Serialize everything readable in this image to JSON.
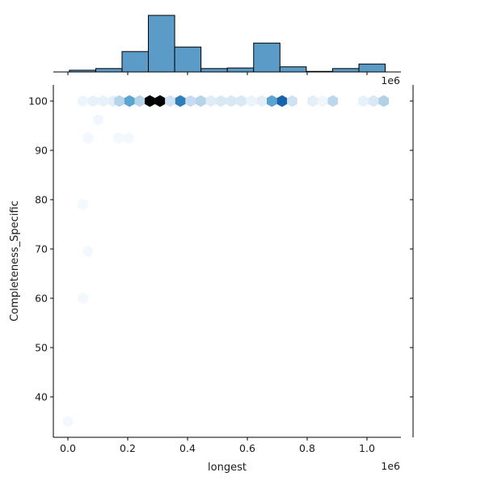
{
  "chart_data": {
    "type": "hexbin",
    "kind": "jointplot",
    "xlabel": "longest",
    "ylabel": "Completeness_Specific",
    "x_offset_text": "1e6",
    "xlim": [
      -50000,
      1120000
    ],
    "ylim": [
      32,
      103.5
    ],
    "x_ticks": [
      0.0,
      0.2,
      0.4,
      0.6,
      0.8,
      1.0
    ],
    "x_tick_labels": [
      "0.0",
      "0.2",
      "0.4",
      "0.6",
      "0.8",
      "1.0"
    ],
    "y_ticks": [
      40,
      50,
      60,
      70,
      80,
      90,
      100
    ],
    "y_tick_labels": [
      "40",
      "50",
      "60",
      "70",
      "80",
      "90",
      "100"
    ],
    "colormap": "Blues",
    "hexbins": [
      {
        "x": 50000,
        "y": 100,
        "level": 0.05
      },
      {
        "x": 84000,
        "y": 100,
        "level": 0.08
      },
      {
        "x": 118000,
        "y": 100,
        "level": 0.08
      },
      {
        "x": 152000,
        "y": 100,
        "level": 0.1
      },
      {
        "x": 172000,
        "y": 100,
        "level": 0.3
      },
      {
        "x": 206000,
        "y": 100,
        "level": 0.55
      },
      {
        "x": 240000,
        "y": 100,
        "level": 0.3
      },
      {
        "x": 274000,
        "y": 100,
        "level": 1.0
      },
      {
        "x": 308000,
        "y": 100,
        "level": 1.0
      },
      {
        "x": 342000,
        "y": 100,
        "level": 0.2
      },
      {
        "x": 376000,
        "y": 100,
        "level": 0.7
      },
      {
        "x": 410000,
        "y": 100,
        "level": 0.25
      },
      {
        "x": 444000,
        "y": 100,
        "level": 0.3
      },
      {
        "x": 478000,
        "y": 100,
        "level": 0.12
      },
      {
        "x": 512000,
        "y": 100,
        "level": 0.15
      },
      {
        "x": 546000,
        "y": 100,
        "level": 0.15
      },
      {
        "x": 580000,
        "y": 100,
        "level": 0.15
      },
      {
        "x": 614000,
        "y": 100,
        "level": 0.06
      },
      {
        "x": 648000,
        "y": 100,
        "level": 0.1
      },
      {
        "x": 682000,
        "y": 100,
        "level": 0.55
      },
      {
        "x": 716000,
        "y": 100,
        "level": 0.8
      },
      {
        "x": 750000,
        "y": 100,
        "level": 0.2
      },
      {
        "x": 818000,
        "y": 100,
        "level": 0.1
      },
      {
        "x": 852000,
        "y": 100,
        "level": 0.04
      },
      {
        "x": 886000,
        "y": 100,
        "level": 0.28
      },
      {
        "x": 988000,
        "y": 100,
        "level": 0.08
      },
      {
        "x": 1022000,
        "y": 100,
        "level": 0.15
      },
      {
        "x": 1056000,
        "y": 100,
        "level": 0.32
      },
      {
        "x": 101000,
        "y": 96.2,
        "level": 0.03
      },
      {
        "x": 67000,
        "y": 92.5,
        "level": 0.02
      },
      {
        "x": 169000,
        "y": 92.5,
        "level": 0.02
      },
      {
        "x": 203000,
        "y": 92.5,
        "level": 0.02
      },
      {
        "x": 50000,
        "y": 79,
        "level": 0.02
      },
      {
        "x": 67000,
        "y": 69.5,
        "level": 0.02
      },
      {
        "x": 50000,
        "y": 60,
        "level": 0.02
      },
      {
        "x": 0,
        "y": 35,
        "level": 0.02
      }
    ],
    "marginal_x_histogram": {
      "bin_edges": [
        5000,
        93000,
        181000,
        269000,
        357000,
        445000,
        533000,
        621000,
        709000,
        797000,
        885000,
        973000,
        1061000
      ],
      "relative_heights": [
        0.03,
        0.06,
        0.36,
        1.0,
        0.44,
        0.06,
        0.07,
        0.51,
        0.09,
        0.01,
        0.06,
        0.14
      ],
      "color": "#5b9bc8"
    },
    "marginal_y_histogram": {
      "bins": []
    },
    "grid": false
  },
  "colors": {
    "hist_fill": "#5b9bc8",
    "hist_edge": "#000000",
    "axis": "#000000",
    "text": "#1a1a1a"
  }
}
